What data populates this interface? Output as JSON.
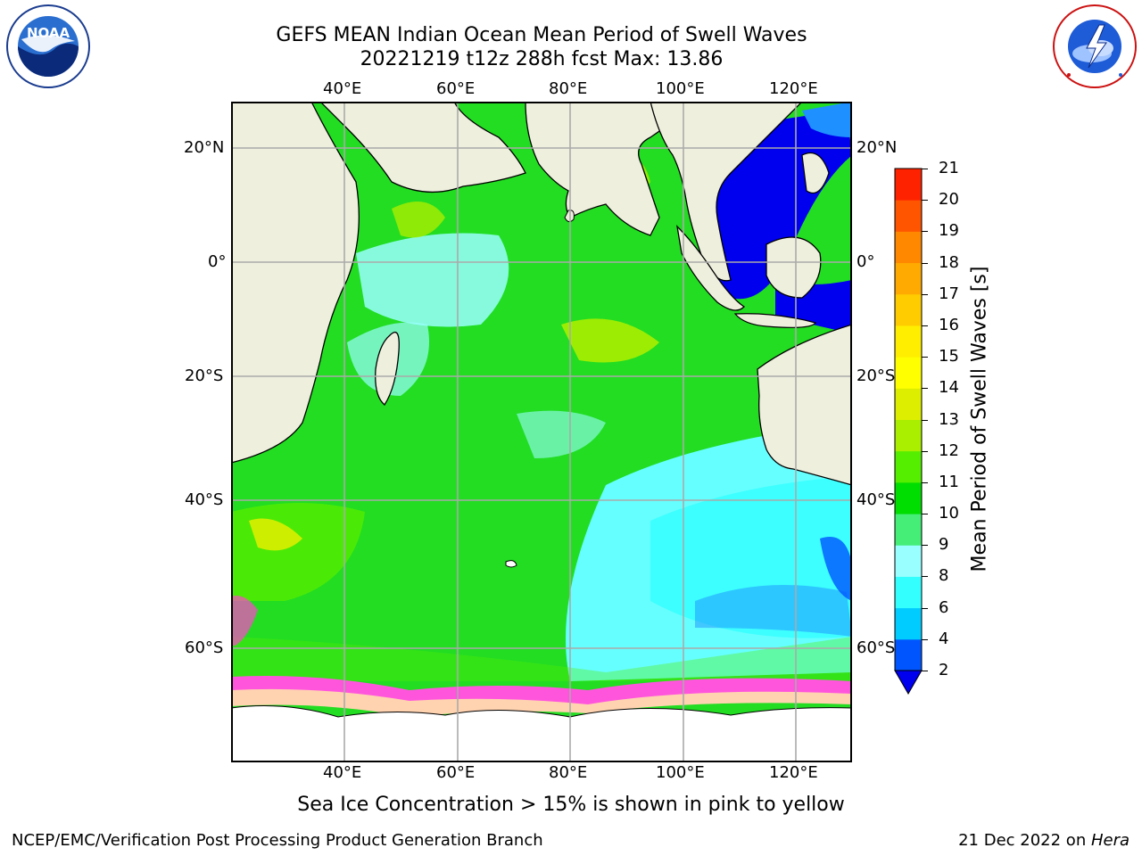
{
  "header": {
    "title_line1": "GEFS MEAN Indian Ocean Mean Period of Swell Waves",
    "title_line2": "20221219 t12z 288h fcst   Max: 13.86"
  },
  "map": {
    "lon_labels": [
      "40°E",
      "60°E",
      "80°E",
      "100°E",
      "120°E"
    ],
    "lat_labels": [
      "20°N",
      "0°",
      "20°S",
      "40°S",
      "60°S"
    ],
    "lon_range": [
      20,
      130
    ],
    "lat_range": [
      -73,
      28
    ],
    "land_color": "#efefde",
    "ocean_dominant_color": "#22dd22",
    "grid": true
  },
  "colorbar": {
    "title": "Mean Period of Swell Waves [s]",
    "levels": [
      "2",
      "4",
      "6",
      "8",
      "9",
      "10",
      "11",
      "12",
      "13",
      "14",
      "15",
      "16",
      "17",
      "18",
      "19",
      "20",
      "21"
    ],
    "colors": [
      "#0055ff",
      "#00ccff",
      "#33ffff",
      "#99ffff",
      "#44ee77",
      "#00dd00",
      "#55ee00",
      "#aaee00",
      "#ddee00",
      "#ffff00",
      "#ffee00",
      "#ffcc00",
      "#ffaa00",
      "#ff8800",
      "#ff5500",
      "#ff2200"
    ],
    "under_color": "#0000ee",
    "extend": "min"
  },
  "note": "Sea Ice Concentration > 15% is shown in pink to yellow",
  "footer": {
    "left": "NCEP/EMC/Verification Post Processing Product Generation Branch",
    "right_date": "21 Dec 2022 on ",
    "right_machine": "Hera"
  },
  "logos": {
    "left": "noaa-logo",
    "right": "national-weather-service-logo",
    "right_text": "NATIONAL WEATHER SERVICE"
  }
}
